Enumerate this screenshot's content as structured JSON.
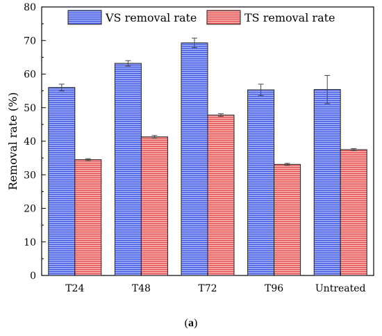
{
  "figure": {
    "caption_open": "(",
    "caption_letter": "a",
    "caption_close": ")"
  },
  "chart_data": {
    "type": "bar",
    "categories": [
      "T24",
      "T48",
      "T72",
      "T96",
      "Untreated"
    ],
    "series": [
      {
        "name": "VS removal rate",
        "values": [
          56.0,
          63.2,
          69.3,
          55.3,
          55.4
        ],
        "errors": [
          1.0,
          0.8,
          1.4,
          1.7,
          4.2
        ],
        "color": "#7a8cf0"
      },
      {
        "name": "TS removal rate",
        "values": [
          34.5,
          41.3,
          47.8,
          33.1,
          37.5
        ],
        "errors": [
          0.3,
          0.4,
          0.4,
          0.3,
          0.3
        ],
        "color": "#f08484"
      }
    ],
    "ylabel": "Removal rate (%)",
    "xlabel": "",
    "ylim": [
      0,
      80
    ],
    "yticks": [
      0,
      10,
      20,
      30,
      40,
      50,
      60,
      70,
      80
    ],
    "legend_position": "top",
    "grid": false
  }
}
